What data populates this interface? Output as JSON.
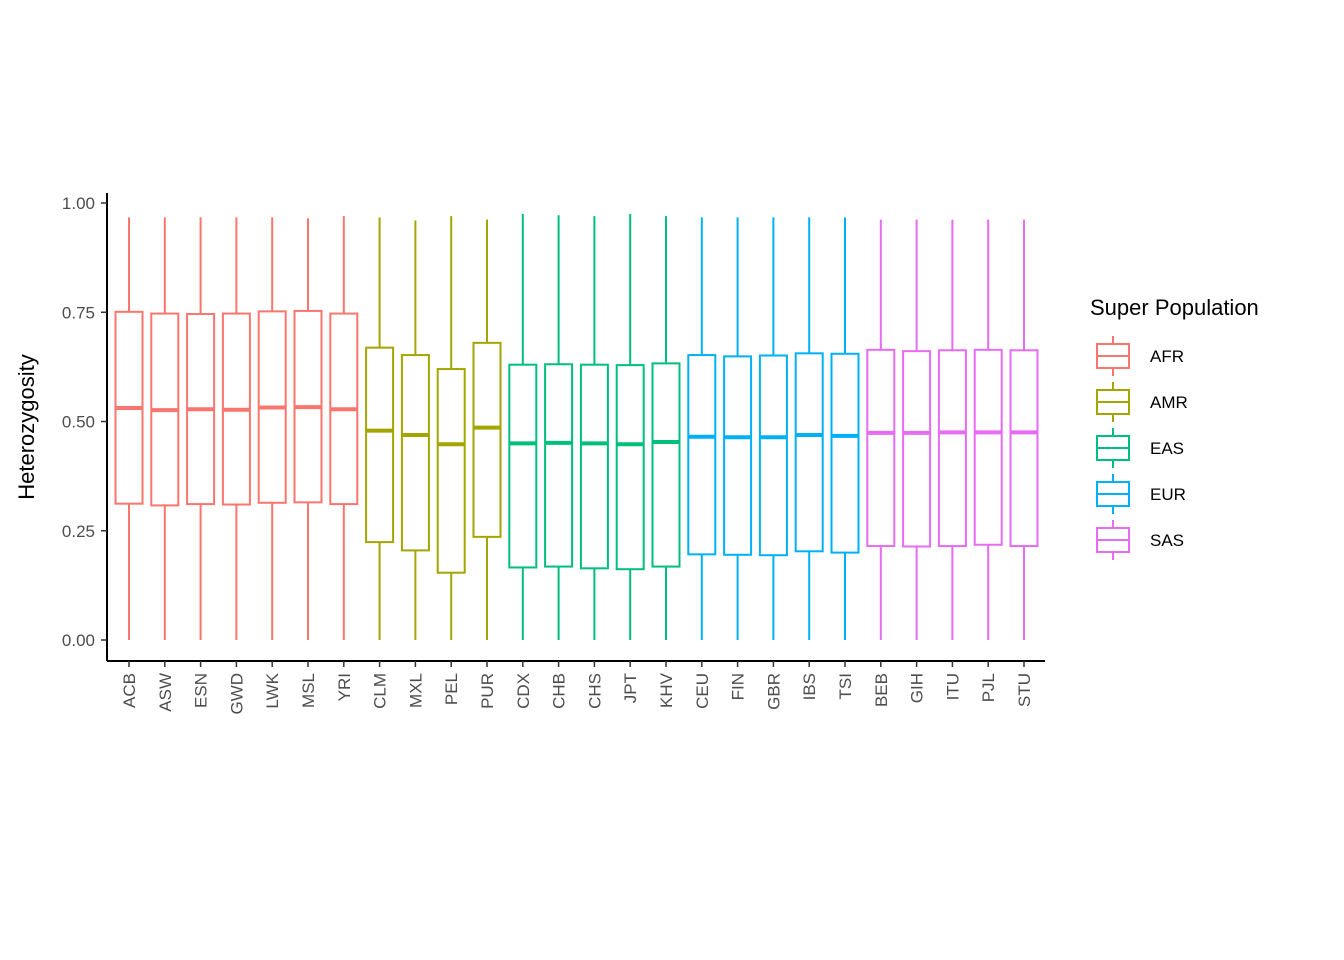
{
  "chart_data": {
    "type": "boxplot",
    "title": "",
    "xlabel": "",
    "ylabel": "Heterozygosity",
    "ylim": [
      0,
      1
    ],
    "yticks": [
      "0.00",
      "0.25",
      "0.50",
      "0.75",
      "1.00"
    ],
    "grid": false,
    "legend": {
      "title": "Super Population",
      "placement": "right",
      "entries": [
        {
          "name": "AFR",
          "color": "#F8766D"
        },
        {
          "name": "AMR",
          "color": "#A3A500"
        },
        {
          "name": "EAS",
          "color": "#00BF7D"
        },
        {
          "name": "EUR",
          "color": "#00B0F6"
        },
        {
          "name": "SAS",
          "color": "#E76BF3"
        }
      ]
    },
    "categories": [
      "ACB",
      "ASW",
      "ESN",
      "GWD",
      "LWK",
      "MSL",
      "YRI",
      "CLM",
      "MXL",
      "PEL",
      "PUR",
      "CDX",
      "CHB",
      "CHS",
      "JPT",
      "KHV",
      "CEU",
      "FIN",
      "GBR",
      "IBS",
      "TSI",
      "BEB",
      "GIH",
      "ITU",
      "PJL",
      "STU"
    ],
    "groups": [
      "AFR",
      "AFR",
      "AFR",
      "AFR",
      "AFR",
      "AFR",
      "AFR",
      "AMR",
      "AMR",
      "AMR",
      "AMR",
      "EAS",
      "EAS",
      "EAS",
      "EAS",
      "EAS",
      "EUR",
      "EUR",
      "EUR",
      "EUR",
      "EUR",
      "SAS",
      "SAS",
      "SAS",
      "SAS",
      "SAS"
    ],
    "boxes": [
      {
        "min": 0.0,
        "q1": 0.312,
        "median": 0.531,
        "q3": 0.751,
        "max": 0.967
      },
      {
        "min": 0.0,
        "q1": 0.308,
        "median": 0.526,
        "q3": 0.747,
        "max": 0.967
      },
      {
        "min": 0.0,
        "q1": 0.311,
        "median": 0.528,
        "q3": 0.746,
        "max": 0.967
      },
      {
        "min": 0.0,
        "q1": 0.31,
        "median": 0.527,
        "q3": 0.747,
        "max": 0.967
      },
      {
        "min": 0.0,
        "q1": 0.314,
        "median": 0.532,
        "q3": 0.752,
        "max": 0.967
      },
      {
        "min": 0.0,
        "q1": 0.315,
        "median": 0.533,
        "q3": 0.753,
        "max": 0.965
      },
      {
        "min": 0.0,
        "q1": 0.311,
        "median": 0.528,
        "q3": 0.747,
        "max": 0.97
      },
      {
        "min": 0.0,
        "q1": 0.224,
        "median": 0.479,
        "q3": 0.669,
        "max": 0.967
      },
      {
        "min": 0.0,
        "q1": 0.205,
        "median": 0.469,
        "q3": 0.652,
        "max": 0.96
      },
      {
        "min": 0.0,
        "q1": 0.154,
        "median": 0.448,
        "q3": 0.62,
        "max": 0.97
      },
      {
        "min": 0.0,
        "q1": 0.236,
        "median": 0.486,
        "q3": 0.68,
        "max": 0.962
      },
      {
        "min": 0.0,
        "q1": 0.166,
        "median": 0.45,
        "q3": 0.63,
        "max": 0.975
      },
      {
        "min": 0.0,
        "q1": 0.168,
        "median": 0.451,
        "q3": 0.631,
        "max": 0.972
      },
      {
        "min": 0.0,
        "q1": 0.164,
        "median": 0.45,
        "q3": 0.63,
        "max": 0.97
      },
      {
        "min": 0.0,
        "q1": 0.162,
        "median": 0.448,
        "q3": 0.629,
        "max": 0.975
      },
      {
        "min": 0.0,
        "q1": 0.168,
        "median": 0.453,
        "q3": 0.633,
        "max": 0.97
      },
      {
        "min": 0.0,
        "q1": 0.196,
        "median": 0.465,
        "q3": 0.652,
        "max": 0.967
      },
      {
        "min": 0.0,
        "q1": 0.195,
        "median": 0.464,
        "q3": 0.649,
        "max": 0.967
      },
      {
        "min": 0.0,
        "q1": 0.194,
        "median": 0.464,
        "q3": 0.651,
        "max": 0.967
      },
      {
        "min": 0.0,
        "q1": 0.203,
        "median": 0.469,
        "q3": 0.656,
        "max": 0.967
      },
      {
        "min": 0.0,
        "q1": 0.2,
        "median": 0.467,
        "q3": 0.655,
        "max": 0.967
      },
      {
        "min": 0.0,
        "q1": 0.215,
        "median": 0.474,
        "q3": 0.664,
        "max": 0.962
      },
      {
        "min": 0.0,
        "q1": 0.214,
        "median": 0.474,
        "q3": 0.661,
        "max": 0.962
      },
      {
        "min": 0.0,
        "q1": 0.215,
        "median": 0.475,
        "q3": 0.663,
        "max": 0.962
      },
      {
        "min": 0.0,
        "q1": 0.218,
        "median": 0.475,
        "q3": 0.664,
        "max": 0.962
      },
      {
        "min": 0.0,
        "q1": 0.215,
        "median": 0.475,
        "q3": 0.663,
        "max": 0.962
      }
    ]
  }
}
